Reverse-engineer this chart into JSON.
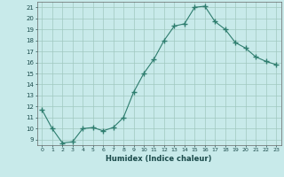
{
  "x": [
    0,
    1,
    2,
    3,
    4,
    5,
    6,
    7,
    8,
    9,
    10,
    11,
    12,
    13,
    14,
    15,
    16,
    17,
    18,
    19,
    20,
    21,
    22,
    23
  ],
  "y": [
    11.7,
    10.0,
    8.7,
    8.8,
    10.0,
    10.1,
    9.8,
    10.1,
    11.0,
    13.3,
    15.0,
    16.3,
    18.0,
    19.3,
    19.5,
    21.0,
    21.1,
    19.7,
    19.0,
    17.8,
    17.3,
    16.5,
    16.1,
    15.8
  ],
  "line_color": "#2e7d6e",
  "marker": "+",
  "marker_size": 4,
  "bg_color": "#c8eaea",
  "grid_color": "#a0c8c0",
  "xlabel": "Humidex (Indice chaleur)",
  "xlim": [
    -0.5,
    23.5
  ],
  "ylim": [
    8.5,
    21.5
  ],
  "yticks": [
    9,
    10,
    11,
    12,
    13,
    14,
    15,
    16,
    17,
    18,
    19,
    20,
    21
  ],
  "xticks": [
    0,
    1,
    2,
    3,
    4,
    5,
    6,
    7,
    8,
    9,
    10,
    11,
    12,
    13,
    14,
    15,
    16,
    17,
    18,
    19,
    20,
    21,
    22,
    23
  ]
}
